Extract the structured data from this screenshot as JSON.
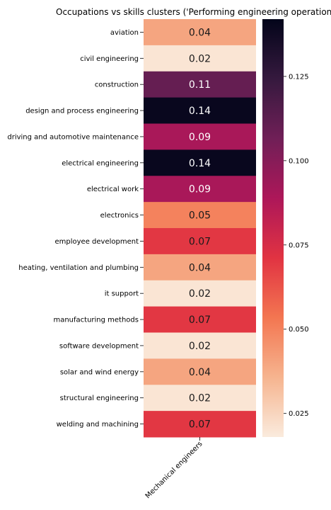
{
  "chart_data": {
    "type": "heatmap",
    "title": "Occupations vs skills clusters ('Performing engineering operations')",
    "xlabel": "",
    "ylabel": "",
    "columns": [
      "Mechanical engineers"
    ],
    "rows": [
      "aviation",
      "civil engineering",
      "construction",
      "design and process engineering",
      "driving and automotive maintenance",
      "electrical engineering",
      "electrical work",
      "electronics",
      "employee development",
      "heating, ventilation and plumbing",
      "it support",
      "manufacturing methods",
      "software development",
      "solar and wind energy",
      "structural engineering",
      "welding and machining"
    ],
    "values": [
      0.04,
      0.02,
      0.11,
      0.14,
      0.09,
      0.14,
      0.09,
      0.05,
      0.07,
      0.04,
      0.02,
      0.07,
      0.02,
      0.04,
      0.02,
      0.07
    ],
    "value_labels": [
      "0.04",
      "0.02",
      "0.11",
      "0.14",
      "0.09",
      "0.14",
      "0.09",
      "0.05",
      "0.07",
      "0.04",
      "0.02",
      "0.07",
      "0.02",
      "0.04",
      "0.02",
      "0.07"
    ],
    "colorbar": {
      "range": [
        0.018,
        0.142
      ],
      "ticks": [
        0.025,
        0.05,
        0.075,
        0.1,
        0.125
      ],
      "tick_labels": [
        "0.025",
        "0.050",
        "0.075",
        "0.100",
        "0.125"
      ],
      "colormap": "rocket_r",
      "colors": [
        "#faebdd",
        "#f6b48f",
        "#f37651",
        "#e13342",
        "#ad1759",
        "#701f57",
        "#35193e",
        "#03051a"
      ]
    }
  }
}
